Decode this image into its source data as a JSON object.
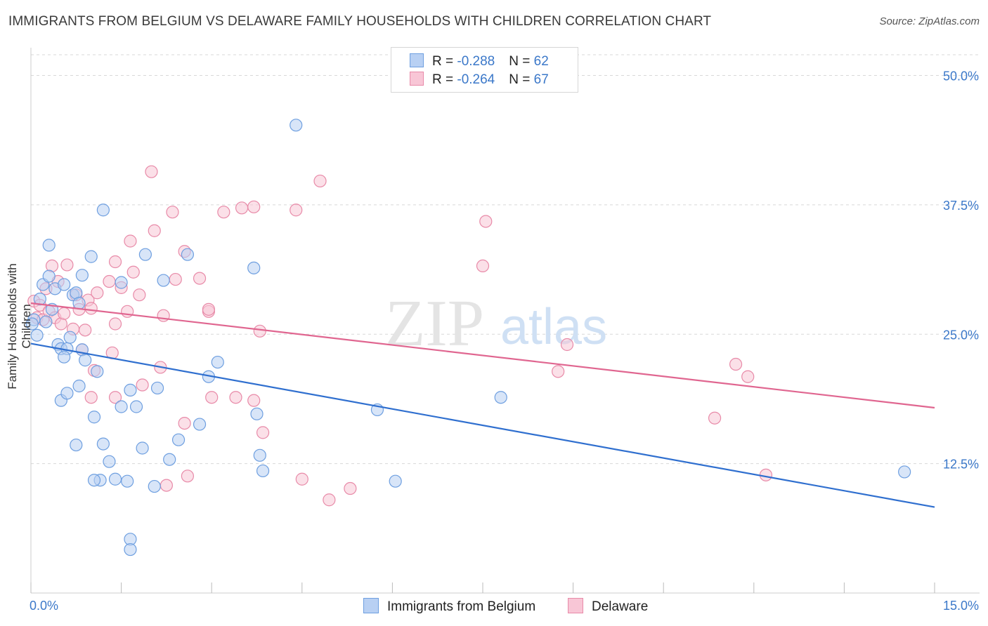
{
  "header": {
    "title": "IMMIGRANTS FROM BELGIUM VS DELAWARE FAMILY HOUSEHOLDS WITH CHILDREN CORRELATION CHART",
    "source": "Source: ZipAtlas.com"
  },
  "watermark": {
    "zip": "ZIP",
    "atlas": "atlas"
  },
  "legend_top": {
    "rows": [
      {
        "r_label": "R = ",
        "r_value": "-0.288",
        "n_label": "N = ",
        "n_value": "62"
      },
      {
        "r_label": "R = ",
        "r_value": "-0.264",
        "n_label": "N = ",
        "n_value": "67"
      }
    ]
  },
  "colors": {
    "blue_fill": "#b8d0f3",
    "blue_stroke": "#6e9fe0",
    "blue_line": "#2f6fcf",
    "pink_fill": "#f8c6d6",
    "pink_stroke": "#e88aa8",
    "pink_line": "#e06690",
    "grid": "#d8d8d8",
    "axis_text": "#3b78c9"
  },
  "chart_data": {
    "type": "scatter",
    "title": "IMMIGRANTS FROM BELGIUM VS DELAWARE FAMILY HOUSEHOLDS WITH CHILDREN CORRELATION CHART",
    "xlabel": "",
    "ylabel": "Family Households with Children",
    "xlim": [
      0,
      15
    ],
    "ylim": [
      0,
      52
    ],
    "x_tick_labels": [
      "0.0%",
      "15.0%"
    ],
    "y_ticks": [
      12.5,
      25.0,
      37.5,
      50.0
    ],
    "y_tick_labels": [
      "12.5%",
      "25.0%",
      "37.5%",
      "50.0%"
    ],
    "x_minor_ticks": [
      0,
      1.5,
      3,
      4.5,
      6,
      7.5,
      9,
      10.5,
      12,
      13.5,
      15
    ],
    "grid": true,
    "series": [
      {
        "name": "Immigrants from Belgium",
        "color": "blue",
        "trend": {
          "x": [
            0,
            15
          ],
          "y": [
            24.1,
            8.3
          ]
        },
        "points": [
          [
            0.05,
            26.4
          ],
          [
            0.1,
            24.9
          ],
          [
            0.15,
            28.4
          ],
          [
            0.2,
            29.8
          ],
          [
            0.25,
            26.2
          ],
          [
            0.3,
            33.6
          ],
          [
            0.3,
            30.6
          ],
          [
            0.35,
            27.4
          ],
          [
            0.4,
            29.4
          ],
          [
            0.45,
            24.0
          ],
          [
            0.5,
            23.6
          ],
          [
            0.55,
            29.8
          ],
          [
            0.6,
            23.6
          ],
          [
            0.65,
            24.7
          ],
          [
            0.7,
            28.8
          ],
          [
            0.75,
            29.0
          ],
          [
            0.8,
            28.0
          ],
          [
            0.85,
            30.7
          ],
          [
            0.85,
            23.5
          ],
          [
            0.9,
            22.5
          ],
          [
            0.55,
            22.8
          ],
          [
            0.8,
            20.0
          ],
          [
            0.5,
            18.6
          ],
          [
            0.6,
            19.3
          ],
          [
            1.0,
            32.5
          ],
          [
            1.05,
            17.0
          ],
          [
            1.1,
            21.4
          ],
          [
            1.2,
            37.0
          ],
          [
            1.5,
            30.0
          ],
          [
            1.5,
            18.0
          ],
          [
            1.65,
            19.6
          ],
          [
            1.75,
            18.0
          ],
          [
            1.85,
            14.0
          ],
          [
            1.9,
            32.7
          ],
          [
            2.1,
            19.8
          ],
          [
            2.2,
            30.2
          ],
          [
            2.6,
            32.7
          ],
          [
            2.8,
            16.3
          ],
          [
            2.95,
            20.9
          ],
          [
            3.1,
            22.3
          ],
          [
            3.7,
            31.4
          ],
          [
            3.75,
            17.3
          ],
          [
            3.8,
            13.3
          ],
          [
            3.85,
            11.8
          ],
          [
            4.4,
            45.2
          ],
          [
            5.75,
            17.7
          ],
          [
            7.8,
            18.9
          ],
          [
            14.5,
            11.7
          ],
          [
            0.75,
            14.3
          ],
          [
            1.2,
            14.4
          ],
          [
            1.3,
            12.7
          ],
          [
            1.4,
            11.0
          ],
          [
            1.6,
            10.8
          ],
          [
            2.05,
            10.3
          ],
          [
            2.3,
            12.9
          ],
          [
            2.45,
            14.8
          ],
          [
            1.65,
            5.2
          ],
          [
            1.65,
            4.2
          ],
          [
            1.15,
            10.9
          ],
          [
            1.05,
            10.9
          ],
          [
            6.05,
            10.8
          ],
          [
            0.02,
            26.0
          ]
        ]
      },
      {
        "name": "Delaware",
        "color": "pink",
        "trend": {
          "x": [
            0,
            15
          ],
          "y": [
            28.0,
            17.9
          ]
        },
        "points": [
          [
            0.05,
            28.2
          ],
          [
            0.1,
            26.6
          ],
          [
            0.15,
            27.8
          ],
          [
            0.2,
            26.4
          ],
          [
            0.25,
            29.4
          ],
          [
            0.3,
            27.2
          ],
          [
            0.35,
            31.6
          ],
          [
            0.4,
            26.6
          ],
          [
            0.5,
            26.0
          ],
          [
            0.55,
            27.0
          ],
          [
            0.6,
            31.7
          ],
          [
            0.7,
            25.5
          ],
          [
            0.75,
            28.8
          ],
          [
            0.8,
            27.4
          ],
          [
            0.9,
            25.4
          ],
          [
            0.95,
            28.3
          ],
          [
            1.0,
            27.5
          ],
          [
            1.1,
            29.0
          ],
          [
            1.3,
            30.1
          ],
          [
            1.4,
            32.0
          ],
          [
            1.5,
            29.5
          ],
          [
            1.6,
            27.2
          ],
          [
            1.7,
            31.0
          ],
          [
            1.8,
            28.8
          ],
          [
            1.65,
            34.0
          ],
          [
            2.0,
            40.7
          ],
          [
            2.05,
            35.0
          ],
          [
            2.2,
            26.8
          ],
          [
            2.35,
            36.8
          ],
          [
            2.4,
            30.3
          ],
          [
            2.55,
            33.0
          ],
          [
            2.8,
            30.4
          ],
          [
            2.95,
            27.2
          ],
          [
            3.2,
            36.8
          ],
          [
            3.5,
            37.2
          ],
          [
            3.7,
            37.3
          ],
          [
            3.8,
            25.3
          ],
          [
            4.4,
            37.0
          ],
          [
            4.8,
            39.8
          ],
          [
            7.55,
            35.9
          ],
          [
            7.5,
            31.6
          ],
          [
            2.95,
            27.4
          ],
          [
            1.35,
            23.2
          ],
          [
            1.4,
            26.0
          ],
          [
            2.15,
            21.8
          ],
          [
            1.85,
            20.1
          ],
          [
            1.4,
            18.9
          ],
          [
            1.0,
            18.9
          ],
          [
            2.55,
            16.4
          ],
          [
            3.0,
            18.9
          ],
          [
            3.4,
            18.9
          ],
          [
            3.7,
            18.6
          ],
          [
            3.85,
            15.5
          ],
          [
            2.6,
            11.3
          ],
          [
            2.25,
            10.4
          ],
          [
            4.5,
            11.0
          ],
          [
            4.95,
            9.0
          ],
          [
            5.3,
            10.1
          ],
          [
            8.9,
            24.0
          ],
          [
            8.75,
            21.4
          ],
          [
            11.7,
            22.1
          ],
          [
            11.9,
            20.9
          ],
          [
            11.35,
            16.9
          ],
          [
            12.2,
            11.4
          ],
          [
            0.85,
            23.5
          ],
          [
            1.05,
            21.5
          ],
          [
            0.45,
            30.1
          ]
        ]
      }
    ]
  },
  "legend_bottom": {
    "items": [
      {
        "label": "Immigrants from Belgium"
      },
      {
        "label": "Delaware"
      }
    ]
  }
}
